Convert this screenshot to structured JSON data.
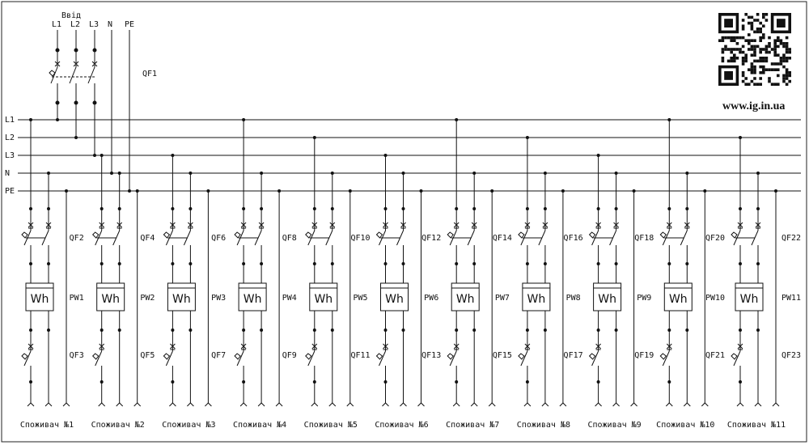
{
  "header": {
    "input_label": "Ввід",
    "input_terminals": [
      "L1",
      "L2",
      "L3",
      "N",
      "PE"
    ],
    "main_breaker": "QF1",
    "website": "www.ig.in.ua"
  },
  "buses": [
    "L1",
    "L2",
    "L3",
    "N",
    "PE"
  ],
  "meter_symbol": "Wh",
  "colors": {
    "line": "#111111",
    "background": "#ffffff",
    "frame": "#222222"
  },
  "qr_icon": "qr-code-icon",
  "circuits": [
    {
      "phase": "L1",
      "top_breaker": "",
      "meter": "",
      "bottom_breaker": "",
      "consumer": "Споживач №1"
    },
    {
      "phase": "L3",
      "top_breaker": "QF2",
      "meter": "PW1",
      "bottom_breaker": "QF3",
      "consumer": "Споживач №2"
    },
    {
      "phase": "L3",
      "top_breaker": "QF4",
      "meter": "PW2",
      "bottom_breaker": "QF5",
      "consumer": "Споживач №3"
    },
    {
      "phase": "L1",
      "top_breaker": "QF6",
      "meter": "PW3",
      "bottom_breaker": "QF7",
      "consumer": "Споживач №4"
    },
    {
      "phase": "L2",
      "top_breaker": "QF8",
      "meter": "PW4",
      "bottom_breaker": "QF9",
      "consumer": "Споживач №5"
    },
    {
      "phase": "L3",
      "top_breaker": "QF10",
      "meter": "PW5",
      "bottom_breaker": "QF11",
      "consumer": "Споживач №6"
    },
    {
      "phase": "L1",
      "top_breaker": "QF12",
      "meter": "PW6",
      "bottom_breaker": "QF13",
      "consumer": "Споживач №7"
    },
    {
      "phase": "L2",
      "top_breaker": "QF14",
      "meter": "PW7",
      "bottom_breaker": "QF15",
      "consumer": "Споживач №8"
    },
    {
      "phase": "L3",
      "top_breaker": "QF16",
      "meter": "PW8",
      "bottom_breaker": "QF17",
      "consumer": "Споживач №9"
    },
    {
      "phase": "L1",
      "top_breaker": "QF18",
      "meter": "PW9",
      "bottom_breaker": "QF19",
      "consumer": "Споживач №10"
    },
    {
      "phase": "L2",
      "top_breaker": "QF20",
      "meter": "PW10",
      "bottom_breaker": "QF21",
      "consumer": "Споживач №11"
    }
  ],
  "trailing_labels": {
    "top_breaker": "QF22",
    "meter": "PW11",
    "bottom_breaker": "QF23"
  }
}
